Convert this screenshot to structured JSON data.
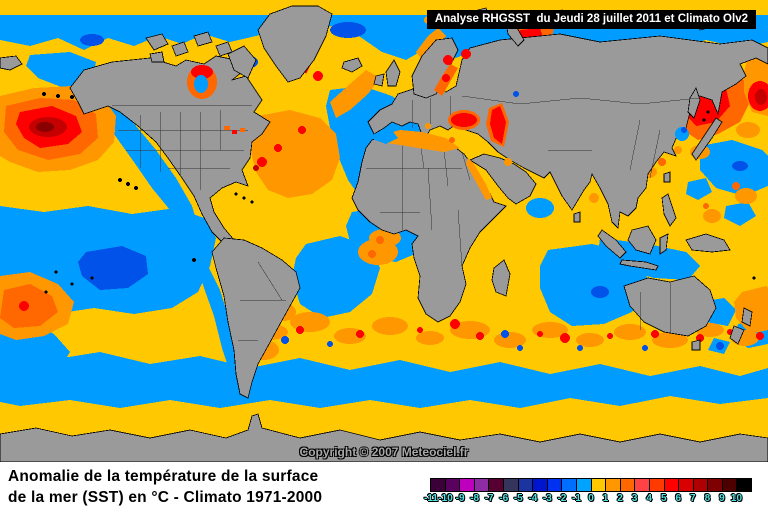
{
  "banner": {
    "text": "Analyse RHGSST  du Jeudi 28 juillet 2011 et Climato Olv2"
  },
  "map": {
    "copyright": "Copyright © 2007 Meteociel.fr"
  },
  "caption": {
    "line1": "Anomalie de la température de la surface",
    "line2": "de la mer (SST) en °C - Climato 1971-2000"
  },
  "scale": {
    "tick_labels": [
      "-11",
      "-10",
      "-9",
      "-8",
      "-7",
      "-6",
      "-5",
      "-4",
      "-3",
      "-2",
      "-1",
      "0",
      "1",
      "2",
      "3",
      "4",
      "5",
      "6",
      "7",
      "8",
      "9",
      "10"
    ],
    "cell_colors": [
      "#3C0038",
      "#5A005E",
      "#BE00BE",
      "#8E2CA4",
      "#560032",
      "#35355C",
      "#1C34A0",
      "#0016CE",
      "#0030F0",
      "#006EFF",
      "#00A4FF",
      "#FFC800",
      "#FF9800",
      "#FF6800",
      "#FF4244",
      "#FF3A00",
      "#FF0000",
      "#D80000",
      "#AE0000",
      "#7E0000",
      "#4C0000",
      "#000000"
    ],
    "label_color": "#4DE4E4"
  },
  "colors": {
    "land": "#9A9A9A",
    "ocean_warm": "#FFC800",
    "ocean_cold": "#009CFF",
    "cold_deep": "#0052E8",
    "warm2": "#FF9800",
    "warm3": "#FF6800",
    "hot": "#FF0000",
    "hot_deep": "#C40000",
    "hottest": "#8A0000",
    "banner_bg": "#000000",
    "banner_text": "#FFFFFF",
    "copyright_text": "#A8A8A8",
    "footer_bg": "#FFFFFF",
    "caption_text": "#000000",
    "scale_label": "#4DE4E4"
  }
}
